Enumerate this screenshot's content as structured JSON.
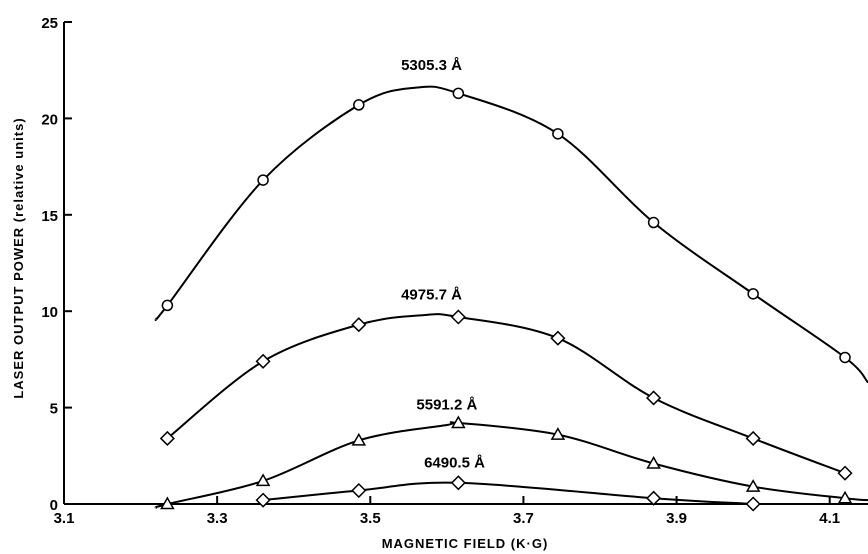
{
  "chart_data": {
    "type": "line",
    "xlabel": "MAGNETIC FIELD (K·G)",
    "ylabel": "LASER OUTPUT POWER (relative units)",
    "xlim": [
      3.1,
      4.15
    ],
    "ylim": [
      0,
      25
    ],
    "x_ticks": [
      3.1,
      3.3,
      3.5,
      3.7,
      3.9,
      4.1
    ],
    "x_tick_labels": [
      "3.1",
      "3.3",
      "3.5",
      "3.7",
      "3.9",
      "4.1"
    ],
    "y_ticks": [
      0,
      5,
      10,
      15,
      20,
      25
    ],
    "y_tick_labels": [
      "0",
      "5",
      "10",
      "15",
      "20",
      "25"
    ],
    "grid": false,
    "series": [
      {
        "name": "5305.3 Å",
        "marker": "circle",
        "x": [
          3.235,
          3.36,
          3.485,
          3.615,
          3.745,
          3.87,
          4.0,
          4.12
        ],
        "y": [
          10.3,
          16.8,
          20.7,
          21.3,
          19.2,
          14.6,
          10.9,
          7.6
        ],
        "curve": [
          [
            3.22,
            9.6
          ],
          [
            3.235,
            10.3
          ],
          [
            3.36,
            16.8
          ],
          [
            3.485,
            20.7
          ],
          [
            3.56,
            21.6
          ],
          [
            3.615,
            21.3
          ],
          [
            3.745,
            19.2
          ],
          [
            3.87,
            14.6
          ],
          [
            4.0,
            10.9
          ],
          [
            4.12,
            7.6
          ],
          [
            4.15,
            6.3
          ]
        ],
        "label_at": [
          3.58,
          22.5
        ]
      },
      {
        "name": "4975.7 Å",
        "marker": "diamond",
        "x": [
          3.235,
          3.36,
          3.485,
          3.615,
          3.745,
          3.87,
          4.0,
          4.12
        ],
        "y": [
          3.4,
          7.4,
          9.3,
          9.7,
          8.6,
          5.5,
          3.4,
          1.6
        ],
        "curve": [
          [
            3.235,
            3.4
          ],
          [
            3.36,
            7.4
          ],
          [
            3.485,
            9.3
          ],
          [
            3.57,
            9.8
          ],
          [
            3.615,
            9.7
          ],
          [
            3.745,
            8.6
          ],
          [
            3.87,
            5.5
          ],
          [
            4.0,
            3.4
          ],
          [
            4.12,
            1.6
          ]
        ],
        "label_at": [
          3.58,
          10.6
        ]
      },
      {
        "name": "5591.2 Å",
        "marker": "triangle",
        "x": [
          3.235,
          3.36,
          3.485,
          3.615,
          3.745,
          3.87,
          4.0,
          4.12
        ],
        "y": [
          0.0,
          1.2,
          3.3,
          4.2,
          3.6,
          2.1,
          0.9,
          0.3
        ],
        "curve": [
          [
            3.22,
            -0.2
          ],
          [
            3.235,
            0.0
          ],
          [
            3.36,
            1.2
          ],
          [
            3.485,
            3.3
          ],
          [
            3.6,
            4.1
          ],
          [
            3.615,
            4.2
          ],
          [
            3.745,
            3.6
          ],
          [
            3.87,
            2.1
          ],
          [
            4.0,
            0.9
          ],
          [
            4.12,
            0.3
          ],
          [
            4.15,
            0.2
          ]
        ],
        "label_at": [
          3.6,
          4.9
        ]
      },
      {
        "name": "6490.5 Å",
        "marker": "diamond",
        "x": [
          3.36,
          3.485,
          3.615,
          3.87,
          4.0
        ],
        "y": [
          0.2,
          0.7,
          1.1,
          0.3,
          0.0
        ],
        "curve": [
          [
            3.36,
            0.2
          ],
          [
            3.485,
            0.7
          ],
          [
            3.615,
            1.1
          ],
          [
            3.87,
            0.3
          ],
          [
            4.0,
            0.0
          ]
        ],
        "label_at": [
          3.61,
          1.9
        ]
      }
    ]
  }
}
